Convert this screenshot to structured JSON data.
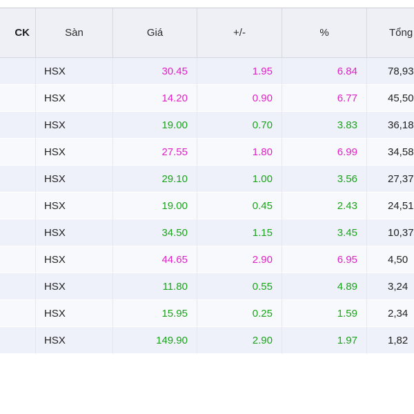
{
  "colors": {
    "ceiling": "#e020c8",
    "up": "#1aa31a",
    "header_bg": "#eef0f5",
    "row_odd_bg": "#eef1fa",
    "row_even_bg": "#f8f9fc"
  },
  "table": {
    "headers": {
      "ck": "CK",
      "san": "Sàn",
      "gia": "Giá",
      "change": "+/-",
      "percent": "%",
      "tong": "Tổng"
    },
    "rows": [
      {
        "san": "HSX",
        "gia": "30.45",
        "change": "1.95",
        "percent": "6.84",
        "tong": "78,93",
        "status": "ceil"
      },
      {
        "san": "HSX",
        "gia": "14.20",
        "change": "0.90",
        "percent": "6.77",
        "tong": "45,50",
        "status": "ceil"
      },
      {
        "san": "HSX",
        "gia": "19.00",
        "change": "0.70",
        "percent": "3.83",
        "tong": "36,18",
        "status": "up"
      },
      {
        "san": "HSX",
        "gia": "27.55",
        "change": "1.80",
        "percent": "6.99",
        "tong": "34,58",
        "status": "ceil"
      },
      {
        "san": "HSX",
        "gia": "29.10",
        "change": "1.00",
        "percent": "3.56",
        "tong": "27,37",
        "status": "up"
      },
      {
        "san": "HSX",
        "gia": "19.00",
        "change": "0.45",
        "percent": "2.43",
        "tong": "24,51",
        "status": "up"
      },
      {
        "san": "HSX",
        "gia": "34.50",
        "change": "1.15",
        "percent": "3.45",
        "tong": "10,37",
        "status": "up"
      },
      {
        "san": "HSX",
        "gia": "44.65",
        "change": "2.90",
        "percent": "6.95",
        "tong": "4,50",
        "status": "ceil"
      },
      {
        "san": "HSX",
        "gia": "11.80",
        "change": "0.55",
        "percent": "4.89",
        "tong": "3,24",
        "status": "up"
      },
      {
        "san": "HSX",
        "gia": "15.95",
        "change": "0.25",
        "percent": "1.59",
        "tong": "2,34",
        "status": "up"
      },
      {
        "san": "HSX",
        "gia": "149.90",
        "change": "2.90",
        "percent": "1.97",
        "tong": "1,82",
        "status": "up"
      }
    ]
  }
}
